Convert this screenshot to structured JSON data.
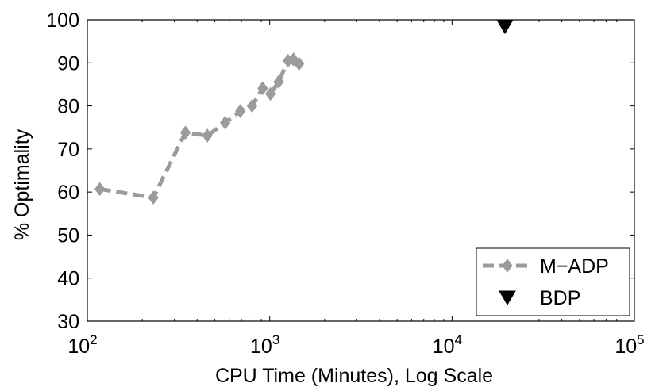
{
  "chart_data": {
    "type": "line",
    "xscale": "log",
    "xlabel": "CPU Time (Minutes), Log Scale",
    "ylabel": "% Optimality",
    "xlim": [
      100,
      100000
    ],
    "ylim": [
      30,
      100
    ],
    "x_tick_labels": [
      {
        "value": 100,
        "base": "10",
        "exp": "2"
      },
      {
        "value": 1000,
        "base": "10",
        "exp": "3"
      },
      {
        "value": 10000,
        "base": "10",
        "exp": "4"
      },
      {
        "value": 100000,
        "base": "10",
        "exp": "5"
      }
    ],
    "y_ticks": [
      30,
      40,
      50,
      60,
      70,
      80,
      90,
      100
    ],
    "grid": false,
    "legend_position": "bottom-right",
    "series": [
      {
        "name": "M−ADP",
        "color": "#9b9b9b",
        "line_style": "dashed",
        "marker": "diamond",
        "x": [
          117,
          230,
          345,
          455,
          570,
          690,
          800,
          915,
          1010,
          1120,
          1260,
          1350,
          1450
        ],
        "y": [
          60.7,
          58.7,
          73.8,
          73.1,
          76.1,
          78.8,
          80.0,
          84.1,
          82.8,
          85.6,
          90.5,
          90.8,
          89.8
        ]
      },
      {
        "name": "BDP",
        "color": "#000000",
        "line_style": "none",
        "marker": "triangle-down",
        "x": [
          19500
        ],
        "y": [
          98.5
        ]
      }
    ]
  }
}
